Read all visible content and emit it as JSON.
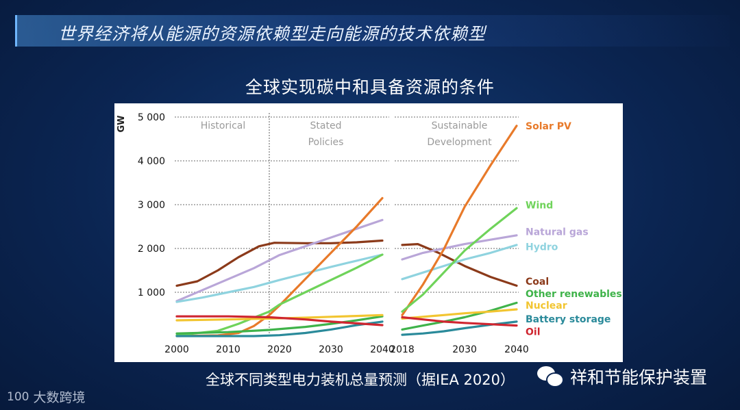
{
  "banner": {
    "title": "世界经济将从能源的资源依赖型走向能源的技术依赖型"
  },
  "chart_title": "全球实现碳中和具备资源的条件",
  "caption": "全球不同类型电力装机总量预测（据IEA 2020）",
  "brand": {
    "name": "祥和节能保护装置",
    "icon": "wechat-icon"
  },
  "watermark": {
    "logo_text": "100",
    "text": "大数跨境"
  },
  "chart_data": {
    "type": "line",
    "ylabel": "GW",
    "ylim": [
      0,
      5000
    ],
    "yticks": [
      1000,
      2000,
      3000,
      4000,
      5000
    ],
    "ytick_labels": [
      "1 000",
      "2 000",
      "3 000",
      "4 000",
      "5 000"
    ],
    "panels": [
      {
        "name": "historical_and_stated",
        "xlim": [
          2000,
          2040
        ],
        "xticks": [
          2000,
          2010,
          2020,
          2030,
          2040
        ],
        "divider_x": 2018,
        "region_labels": [
          {
            "lines": [
              "Historical"
            ],
            "x": 2009
          },
          {
            "lines": [
              "Stated",
              "Policies"
            ],
            "x": 2029
          }
        ],
        "series": [
          {
            "name": "Coal",
            "color": "#8b3a1a",
            "x": [
              2000,
              2004,
              2008,
              2012,
              2016,
              2019,
              2025,
              2030,
              2035,
              2040
            ],
            "y": [
              1150,
              1250,
              1500,
              1800,
              2050,
              2130,
              2120,
              2120,
              2140,
              2180
            ]
          },
          {
            "name": "Natural gas",
            "color": "#b9a6d8",
            "x": [
              2000,
              2005,
              2010,
              2015,
              2020,
              2025,
              2030,
              2035,
              2040
            ],
            "y": [
              800,
              1050,
              1300,
              1550,
              1850,
              2050,
              2250,
              2450,
              2650
            ]
          },
          {
            "name": "Hydro",
            "color": "#8fd3df",
            "x": [
              2000,
              2005,
              2010,
              2015,
              2020,
              2025,
              2030,
              2035,
              2040
            ],
            "y": [
              780,
              880,
              1000,
              1120,
              1280,
              1430,
              1580,
              1720,
              1860
            ]
          },
          {
            "name": "Solar PV",
            "color": "#e87a2a",
            "x": [
              2000,
              2008,
              2012,
              2015,
              2018,
              2020,
              2025,
              2030,
              2035,
              2040
            ],
            "y": [
              0,
              15,
              70,
              230,
              480,
              700,
              1300,
              1900,
              2500,
              3150
            ]
          },
          {
            "name": "Wind",
            "color": "#6fd35a",
            "x": [
              2000,
              2008,
              2012,
              2015,
              2018,
              2020,
              2025,
              2030,
              2035,
              2040
            ],
            "y": [
              15,
              120,
              280,
              420,
              560,
              720,
              1000,
              1280,
              1560,
              1860
            ]
          },
          {
            "name": "Other renewables",
            "color": "#3fb34a",
            "x": [
              2000,
              2010,
              2018,
              2025,
              2030,
              2035,
              2040
            ],
            "y": [
              60,
              90,
              140,
              210,
              280,
              360,
              450
            ]
          },
          {
            "name": "Nuclear",
            "color": "#f2c531",
            "x": [
              2000,
              2010,
              2018,
              2025,
              2030,
              2035,
              2040
            ],
            "y": [
              360,
              380,
              400,
              420,
              440,
              460,
              480
            ]
          },
          {
            "name": "Battery storage",
            "color": "#2a8a9a",
            "x": [
              2000,
              2015,
              2020,
              2025,
              2030,
              2035,
              2040
            ],
            "y": [
              0,
              0,
              20,
              70,
              150,
              250,
              330
            ]
          },
          {
            "name": "Oil",
            "color": "#cf2630",
            "x": [
              2000,
              2010,
              2018,
              2025,
              2030,
              2035,
              2040
            ],
            "y": [
              450,
              450,
              430,
              380,
              330,
              290,
              250
            ]
          }
        ]
      },
      {
        "name": "sustainable_development",
        "xlim": [
          2018,
          2040
        ],
        "xticks": [
          2018,
          2030,
          2040
        ],
        "region_labels": [
          {
            "lines": [
              "Sustainable",
              "Development"
            ],
            "x": 2029
          }
        ],
        "series": [
          {
            "name": "Coal",
            "color": "#8b3a1a",
            "x": [
              2018,
              2021,
              2025,
              2030,
              2035,
              2040
            ],
            "y": [
              2080,
              2100,
              1900,
              1600,
              1350,
              1150
            ]
          },
          {
            "name": "Natural gas",
            "color": "#b9a6d8",
            "x": [
              2018,
              2022,
              2026,
              2030,
              2035,
              2040
            ],
            "y": [
              1750,
              1900,
              2000,
              2100,
              2200,
              2300
            ]
          },
          {
            "name": "Hydro",
            "color": "#8fd3df",
            "x": [
              2018,
              2022,
              2026,
              2030,
              2035,
              2040
            ],
            "y": [
              1300,
              1450,
              1600,
              1750,
              1900,
              2080
            ]
          },
          {
            "name": "Solar PV",
            "color": "#e87a2a",
            "x": [
              2018,
              2022,
              2026,
              2030,
              2035,
              2040
            ],
            "y": [
              480,
              1180,
              1980,
              2950,
              3900,
              4800
            ]
          },
          {
            "name": "Wind",
            "color": "#6fd35a",
            "x": [
              2018,
              2022,
              2026,
              2030,
              2035,
              2040
            ],
            "y": [
              560,
              950,
              1450,
              1950,
              2450,
              2920
            ]
          },
          {
            "name": "Other renewables",
            "color": "#3fb34a",
            "x": [
              2018,
              2022,
              2026,
              2030,
              2035,
              2040
            ],
            "y": [
              150,
              240,
              330,
              430,
              580,
              760
            ]
          },
          {
            "name": "Nuclear",
            "color": "#f2c531",
            "x": [
              2018,
              2022,
              2026,
              2030,
              2035,
              2040
            ],
            "y": [
              400,
              440,
              480,
              520,
              560,
              610
            ]
          },
          {
            "name": "Battery storage",
            "color": "#2a8a9a",
            "x": [
              2018,
              2022,
              2026,
              2030,
              2035,
              2040
            ],
            "y": [
              30,
              60,
              110,
              180,
              260,
              330
            ]
          },
          {
            "name": "Oil",
            "color": "#cf2630",
            "x": [
              2018,
              2022,
              2026,
              2030,
              2035,
              2040
            ],
            "y": [
              430,
              380,
              330,
              300,
              270,
              240
            ]
          }
        ]
      }
    ],
    "legend": [
      {
        "name": "Solar PV",
        "color": "#e87a2a",
        "value_at": 4800
      },
      {
        "name": "Wind",
        "color": "#6fd35a",
        "value_at": 2990
      },
      {
        "name": "Natural gas",
        "color": "#b9a6d8",
        "value_at": 2380
      },
      {
        "name": "Hydro",
        "color": "#8fd3df",
        "value_at": 2040
      },
      {
        "name": "Coal",
        "color": "#8b3a1a",
        "value_at": 1250
      },
      {
        "name": "Other renewables",
        "color": "#3fb34a",
        "value_at": 970
      },
      {
        "name": "Nuclear",
        "color": "#f2c531",
        "value_at": 700
      },
      {
        "name": "Battery storage",
        "color": "#2a8a9a",
        "value_at": 390
      },
      {
        "name": "Oil",
        "color": "#cf2630",
        "value_at": 100
      }
    ]
  }
}
